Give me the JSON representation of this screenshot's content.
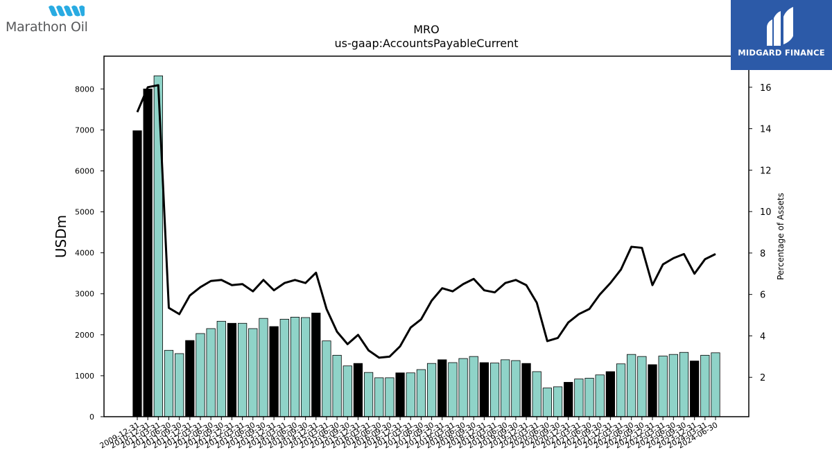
{
  "header": {
    "company_logo_text": "Marathon Oil",
    "partner_logo_text": "MIDGARD FINANCE"
  },
  "colors": {
    "bar_teal": "#8fd3c8",
    "bar_black": "#000000",
    "line": "#000000",
    "logo_blue": "#2c5aa8",
    "logo_cyan": "#29abe2"
  },
  "chart_data": {
    "type": "bar",
    "title": "MRO",
    "subtitle": "us-gaap:AccountsPayableCurrent",
    "ylabel": "USDm",
    "y2label": "Percentage of Assets",
    "ylim": [
      0,
      8800
    ],
    "y2lim": [
      0.1,
      17.5
    ],
    "yticks": [
      0,
      1000,
      2000,
      3000,
      4000,
      5000,
      6000,
      7000,
      8000
    ],
    "y2ticks": [
      2,
      4,
      6,
      8,
      10,
      12,
      14,
      16
    ],
    "legend": "none",
    "grid": false,
    "categories": [
      "2009-12-31",
      "2010-12-31",
      "2011-03-31",
      "2011-06-30",
      "2011-09-30",
      "2011-12-31",
      "2012-03-31",
      "2012-06-30",
      "2012-09-30",
      "2012-12-31",
      "2013-03-31",
      "2013-06-30",
      "2013-09-30",
      "2013-12-31",
      "2014-03-31",
      "2014-06-30",
      "2014-09-30",
      "2014-12-31",
      "2015-03-31",
      "2015-06-30",
      "2015-09-30",
      "2015-12-31",
      "2016-03-31",
      "2016-06-30",
      "2016-09-30",
      "2016-12-31",
      "2017-03-31",
      "2017-06-30",
      "2017-09-30",
      "2017-12-31",
      "2018-03-31",
      "2018-06-30",
      "2018-09-30",
      "2018-12-31",
      "2019-03-31",
      "2019-06-30",
      "2019-09-30",
      "2019-12-31",
      "2020-03-31",
      "2020-06-30",
      "2020-09-30",
      "2020-12-31",
      "2021-03-31",
      "2021-06-30",
      "2021-09-30",
      "2021-12-31",
      "2022-03-31",
      "2022-06-30",
      "2022-09-30",
      "2022-12-31",
      "2023-03-31",
      "2023-06-30",
      "2023-09-30",
      "2023-12-31",
      "2024-03-31",
      "2024-06-30"
    ],
    "series": [
      {
        "kind": "bar",
        "values": [
          6980,
          8000,
          8320,
          1620,
          1540,
          1860,
          2030,
          2150,
          2330,
          2280,
          2280,
          2150,
          2400,
          2200,
          2380,
          2430,
          2420,
          2530,
          1850,
          1500,
          1240,
          1300,
          1080,
          950,
          950,
          1070,
          1070,
          1150,
          1300,
          1390,
          1320,
          1420,
          1470,
          1320,
          1310,
          1390,
          1370,
          1300,
          1100,
          700,
          730,
          840,
          920,
          940,
          1020,
          1100,
          1290,
          1520,
          1470,
          1270,
          1480,
          1520,
          1570,
          1360,
          1500,
          1560
        ]
      },
      {
        "kind": "line",
        "axis": "right",
        "values": [
          14.8,
          16.0,
          16.1,
          5.35,
          5.05,
          5.95,
          6.35,
          6.65,
          6.7,
          6.45,
          6.5,
          6.15,
          6.7,
          6.2,
          6.55,
          6.7,
          6.55,
          7.05,
          5.3,
          4.2,
          3.6,
          4.05,
          3.3,
          2.95,
          3.0,
          3.5,
          4.4,
          4.8,
          5.7,
          6.3,
          6.15,
          6.5,
          6.75,
          6.2,
          6.1,
          6.55,
          6.7,
          6.45,
          5.6,
          3.75,
          3.9,
          4.65,
          5.05,
          5.3,
          6.0,
          6.55,
          7.2,
          8.3,
          8.25,
          6.45,
          7.45,
          7.75,
          7.95,
          7.0,
          7.7,
          7.95
        ]
      }
    ]
  }
}
